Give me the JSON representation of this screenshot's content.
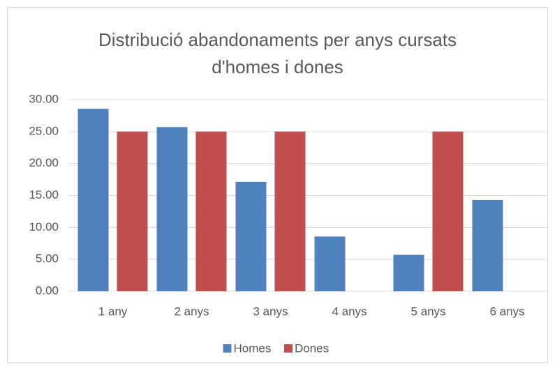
{
  "chart_data": {
    "type": "bar",
    "title": "Distribució abandonaments per anys cursats d'homes i dones",
    "categories": [
      "1 any",
      "2 anys",
      "3 anys",
      "4 anys",
      "5 anys",
      "6 anys"
    ],
    "series": [
      {
        "name": "Homes",
        "color": "#4f81bd",
        "values": [
          28.57,
          25.71,
          17.14,
          8.57,
          5.71,
          14.29
        ]
      },
      {
        "name": "Dones",
        "color": "#c0504d",
        "values": [
          25,
          25,
          25,
          0,
          25,
          0
        ]
      }
    ],
    "ylim": [
      0,
      30
    ],
    "yticks": [
      {
        "value": 0,
        "label": "0.00"
      },
      {
        "value": 5,
        "label": "5.00"
      },
      {
        "value": 10,
        "label": "10.00"
      },
      {
        "value": 15,
        "label": "15.00"
      },
      {
        "value": 20,
        "label": "20.00"
      },
      {
        "value": 25,
        "label": "25.00"
      },
      {
        "value": 30,
        "label": "30.00"
      }
    ],
    "grid": true,
    "legend": "bottom"
  }
}
